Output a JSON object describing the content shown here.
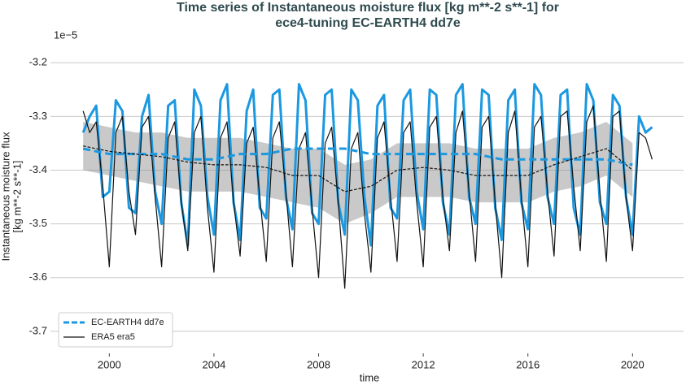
{
  "chart_data": {
    "type": "line",
    "title": [
      "Time series of Instantaneous moisture flux [kg m**-2 s**-1] for",
      "ece4-tuning EC-EARTH4 dd7e"
    ],
    "ylabel": [
      "Instantaneous moisture flux",
      "[kg m**-2 s**-1]"
    ],
    "xlabel": "time",
    "y_offset_label": "1e−5",
    "xlim": [
      1997.75,
      2021.95
    ],
    "xticks": [
      2000,
      2004,
      2008,
      2012,
      2016,
      2020
    ],
    "ylim": [
      -3.741,
      -3.177
    ],
    "yticks": [
      -3.2,
      -3.3,
      -3.4,
      -3.5,
      -3.6,
      -3.7
    ],
    "grid": true,
    "legend": "lower left",
    "series": [
      {
        "name": "EC-EARTH4 dd7e",
        "color": "#1b98e0",
        "width": 3,
        "dash": true,
        "x": [
          1999,
          1999.25,
          1999.5,
          1999.75,
          2000,
          2000.25,
          2000.5,
          2000.75,
          2001,
          2001.25,
          2001.5,
          2001.75,
          2002,
          2002.25,
          2002.5,
          2002.75,
          2003,
          2003.25,
          2003.5,
          2003.75,
          2004,
          2004.25,
          2004.5,
          2004.75,
          2005,
          2005.25,
          2005.5,
          2005.75,
          2006,
          2006.25,
          2006.5,
          2006.75,
          2007,
          2007.25,
          2007.5,
          2007.75,
          2008,
          2008.25,
          2008.5,
          2008.75,
          2009,
          2009.25,
          2009.5,
          2009.75,
          2010,
          2010.25,
          2010.5,
          2010.75,
          2011,
          2011.25,
          2011.5,
          2011.75,
          2012,
          2012.25,
          2012.5,
          2012.75,
          2013,
          2013.25,
          2013.5,
          2013.75,
          2014,
          2014.25,
          2014.5,
          2014.75,
          2015,
          2015.25,
          2015.5,
          2015.75,
          2016,
          2016.25,
          2016.5,
          2016.75,
          2017,
          2017.25,
          2017.5,
          2017.75,
          2018,
          2018.25,
          2018.5,
          2018.75,
          2019,
          2019.25,
          2019.5,
          2019.75,
          2020,
          2020.25,
          2020.5,
          2020.75
        ],
        "values": [
          -3.33,
          -3.3,
          -3.28,
          -3.45,
          -3.44,
          -3.27,
          -3.29,
          -3.47,
          -3.48,
          -3.3,
          -3.26,
          -3.44,
          -3.5,
          -3.28,
          -3.27,
          -3.46,
          -3.54,
          -3.25,
          -3.28,
          -3.45,
          -3.52,
          -3.27,
          -3.24,
          -3.46,
          -3.53,
          -3.29,
          -3.25,
          -3.47,
          -3.49,
          -3.26,
          -3.25,
          -3.45,
          -3.51,
          -3.24,
          -3.27,
          -3.48,
          -3.5,
          -3.26,
          -3.25,
          -3.46,
          -3.52,
          -3.25,
          -3.27,
          -3.45,
          -3.54,
          -3.28,
          -3.26,
          -3.47,
          -3.49,
          -3.27,
          -3.25,
          -3.44,
          -3.51,
          -3.25,
          -3.26,
          -3.46,
          -3.52,
          -3.26,
          -3.24,
          -3.45,
          -3.5,
          -3.25,
          -3.26,
          -3.47,
          -3.53,
          -3.27,
          -3.25,
          -3.46,
          -3.51,
          -3.24,
          -3.26,
          -3.45,
          -3.5,
          -3.26,
          -3.25,
          -3.47,
          -3.52,
          -3.24,
          -3.27,
          -3.46,
          -3.5,
          -3.26,
          -3.28,
          -3.45,
          -3.52,
          -3.3,
          -3.33,
          -3.32
        ],
        "trend_x": [
          1999,
          2000,
          2001,
          2002,
          2003,
          2004,
          2005,
          2006,
          2007,
          2008,
          2009,
          2010,
          2011,
          2012,
          2013,
          2014,
          2015,
          2016,
          2017,
          2018,
          2019,
          2020
        ],
        "trend": [
          -3.36,
          -3.37,
          -3.37,
          -3.37,
          -3.38,
          -3.38,
          -3.37,
          -3.37,
          -3.36,
          -3.36,
          -3.36,
          -3.37,
          -3.37,
          -3.37,
          -3.37,
          -3.37,
          -3.38,
          -3.38,
          -3.38,
          -3.38,
          -3.38,
          -3.39
        ]
      },
      {
        "name": "ERA5 era5",
        "color": "#111111",
        "width": 1.2,
        "dash": true,
        "x": [
          1999,
          1999.25,
          1999.5,
          1999.75,
          2000,
          2000.25,
          2000.5,
          2000.75,
          2001,
          2001.25,
          2001.5,
          2001.75,
          2002,
          2002.25,
          2002.5,
          2002.75,
          2003,
          2003.25,
          2003.5,
          2003.75,
          2004,
          2004.25,
          2004.5,
          2004.75,
          2005,
          2005.25,
          2005.5,
          2005.75,
          2006,
          2006.25,
          2006.5,
          2006.75,
          2007,
          2007.25,
          2007.5,
          2007.75,
          2008,
          2008.25,
          2008.5,
          2008.75,
          2009,
          2009.25,
          2009.5,
          2009.75,
          2010,
          2010.25,
          2010.5,
          2010.75,
          2011,
          2011.25,
          2011.5,
          2011.75,
          2012,
          2012.25,
          2012.5,
          2012.75,
          2013,
          2013.25,
          2013.5,
          2013.75,
          2014,
          2014.25,
          2014.5,
          2014.75,
          2015,
          2015.25,
          2015.5,
          2015.75,
          2016,
          2016.25,
          2016.5,
          2016.75,
          2017,
          2017.25,
          2017.5,
          2017.75,
          2018,
          2018.25,
          2018.5,
          2018.75,
          2019,
          2019.25,
          2019.5,
          2019.75,
          2020,
          2020.25,
          2020.5,
          2020.75
        ],
        "values": [
          -3.29,
          -3.33,
          -3.31,
          -3.43,
          -3.58,
          -3.33,
          -3.3,
          -3.44,
          -3.52,
          -3.32,
          -3.3,
          -3.45,
          -3.58,
          -3.34,
          -3.31,
          -3.46,
          -3.55,
          -3.33,
          -3.3,
          -3.47,
          -3.59,
          -3.34,
          -3.31,
          -3.46,
          -3.56,
          -3.35,
          -3.32,
          -3.45,
          -3.57,
          -3.34,
          -3.31,
          -3.44,
          -3.58,
          -3.36,
          -3.33,
          -3.47,
          -3.6,
          -3.35,
          -3.32,
          -3.46,
          -3.62,
          -3.36,
          -3.33,
          -3.48,
          -3.59,
          -3.34,
          -3.31,
          -3.45,
          -3.57,
          -3.33,
          -3.31,
          -3.46,
          -3.58,
          -3.32,
          -3.3,
          -3.45,
          -3.55,
          -3.33,
          -3.29,
          -3.44,
          -3.57,
          -3.32,
          -3.3,
          -3.46,
          -3.6,
          -3.33,
          -3.29,
          -3.45,
          -3.58,
          -3.32,
          -3.3,
          -3.44,
          -3.56,
          -3.3,
          -3.29,
          -3.43,
          -3.55,
          -3.31,
          -3.28,
          -3.44,
          -3.57,
          -3.3,
          -3.29,
          -3.45,
          -3.55,
          -3.33,
          -3.34,
          -3.38
        ],
        "trend_x": [
          1999,
          2000,
          2001,
          2002,
          2003,
          2004,
          2005,
          2006,
          2007,
          2008,
          2009,
          2010,
          2011,
          2012,
          2013,
          2014,
          2015,
          2016,
          2017,
          2018,
          2019,
          2020
        ],
        "trend": [
          -3.355,
          -3.365,
          -3.37,
          -3.375,
          -3.385,
          -3.39,
          -3.39,
          -3.395,
          -3.41,
          -3.41,
          -3.44,
          -3.43,
          -3.4,
          -3.395,
          -3.4,
          -3.41,
          -3.41,
          -3.41,
          -3.39,
          -3.375,
          -3.36,
          -3.4
        ],
        "band_lower": [
          -3.4,
          -3.41,
          -3.42,
          -3.43,
          -3.44,
          -3.44,
          -3.44,
          -3.45,
          -3.46,
          -3.47,
          -3.5,
          -3.48,
          -3.45,
          -3.45,
          -3.45,
          -3.46,
          -3.46,
          -3.46,
          -3.44,
          -3.43,
          -3.41,
          -3.45
        ],
        "band_upper": [
          -3.31,
          -3.32,
          -3.33,
          -3.33,
          -3.34,
          -3.34,
          -3.34,
          -3.35,
          -3.36,
          -3.36,
          -3.39,
          -3.38,
          -3.35,
          -3.35,
          -3.35,
          -3.36,
          -3.36,
          -3.36,
          -3.34,
          -3.33,
          -3.31,
          -3.35
        ]
      }
    ]
  }
}
